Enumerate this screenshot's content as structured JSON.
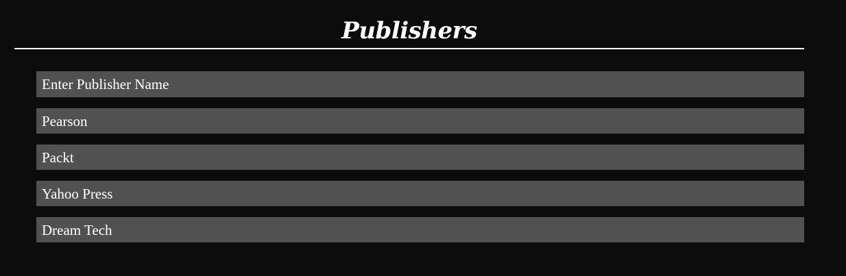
{
  "header": {
    "title": "Publishers"
  },
  "form": {
    "publisher_input": {
      "placeholder": "Enter Publisher Name",
      "value": ""
    }
  },
  "publishers": [
    {
      "name": "Pearson"
    },
    {
      "name": "Packt"
    },
    {
      "name": "Yahoo Press"
    },
    {
      "name": "Dream Tech"
    }
  ],
  "colors": {
    "background": "#0c0c0c",
    "row_background": "#515151",
    "text": "#ffffff",
    "divider": "#ffffff"
  }
}
